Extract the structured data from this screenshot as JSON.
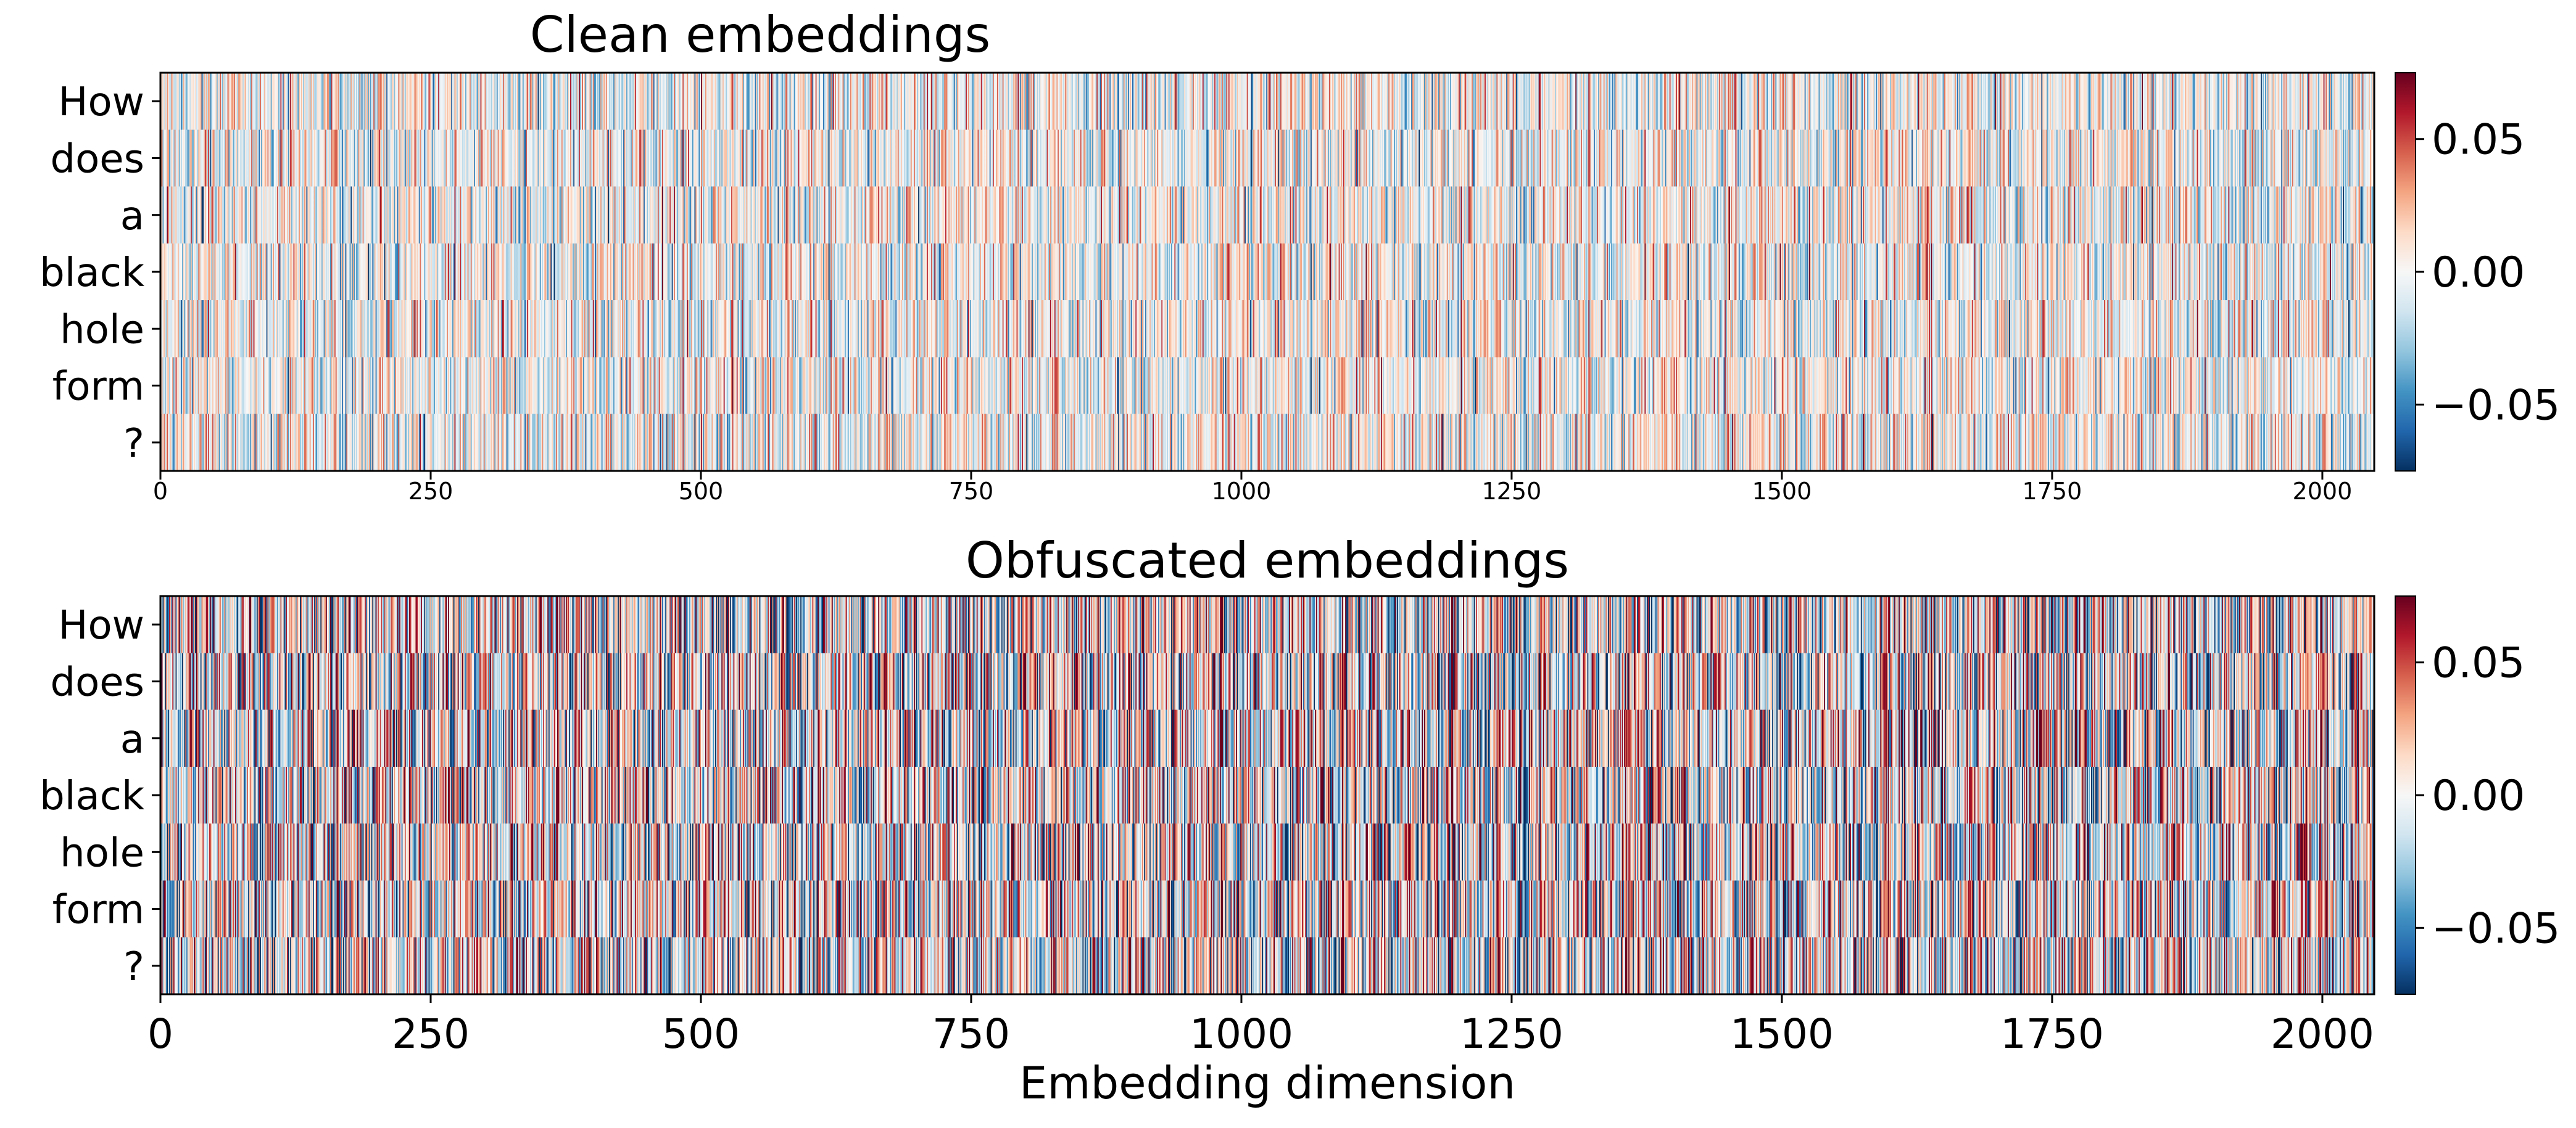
{
  "chart_data": [
    {
      "type": "heatmap",
      "title": "Clean embeddings",
      "xlabel": "",
      "ylabel": "",
      "rows": [
        "How",
        "does",
        "a",
        "black",
        "hole",
        "form",
        "?"
      ],
      "columns": 2048,
      "xlim": [
        0,
        2048
      ],
      "xticks": [
        "0",
        "250",
        "500",
        "750",
        "1000",
        "1250",
        "1500",
        "1750",
        "2000"
      ],
      "color_range": [
        -0.075,
        0.075
      ],
      "typical_abs_value": 0.025,
      "colormap": "RdBu_r",
      "colorbar_ticks": [
        "0.05",
        "0.00",
        "−0.05"
      ],
      "grid": false
    },
    {
      "type": "heatmap",
      "title": "Obfuscated embeddings",
      "xlabel": "Embedding dimension",
      "ylabel": "",
      "rows": [
        "How",
        "does",
        "a",
        "black",
        "hole",
        "form",
        "?"
      ],
      "columns": 2048,
      "xlim": [
        0,
        2048
      ],
      "xticks": [
        "0",
        "250",
        "500",
        "750",
        "1000",
        "1250",
        "1500",
        "1750",
        "2000"
      ],
      "color_range": [
        -0.075,
        0.075
      ],
      "typical_abs_value": 0.045,
      "colormap": "RdBu_r",
      "colorbar_ticks": [
        "0.05",
        "0.00",
        "−0.05"
      ],
      "grid": false
    }
  ],
  "colors": {
    "neg_dark": "#053061",
    "neg_mid": "#4393c3",
    "neutral": "#f7f7f7",
    "pos_mid": "#d6604d",
    "pos_dark": "#67001f"
  }
}
